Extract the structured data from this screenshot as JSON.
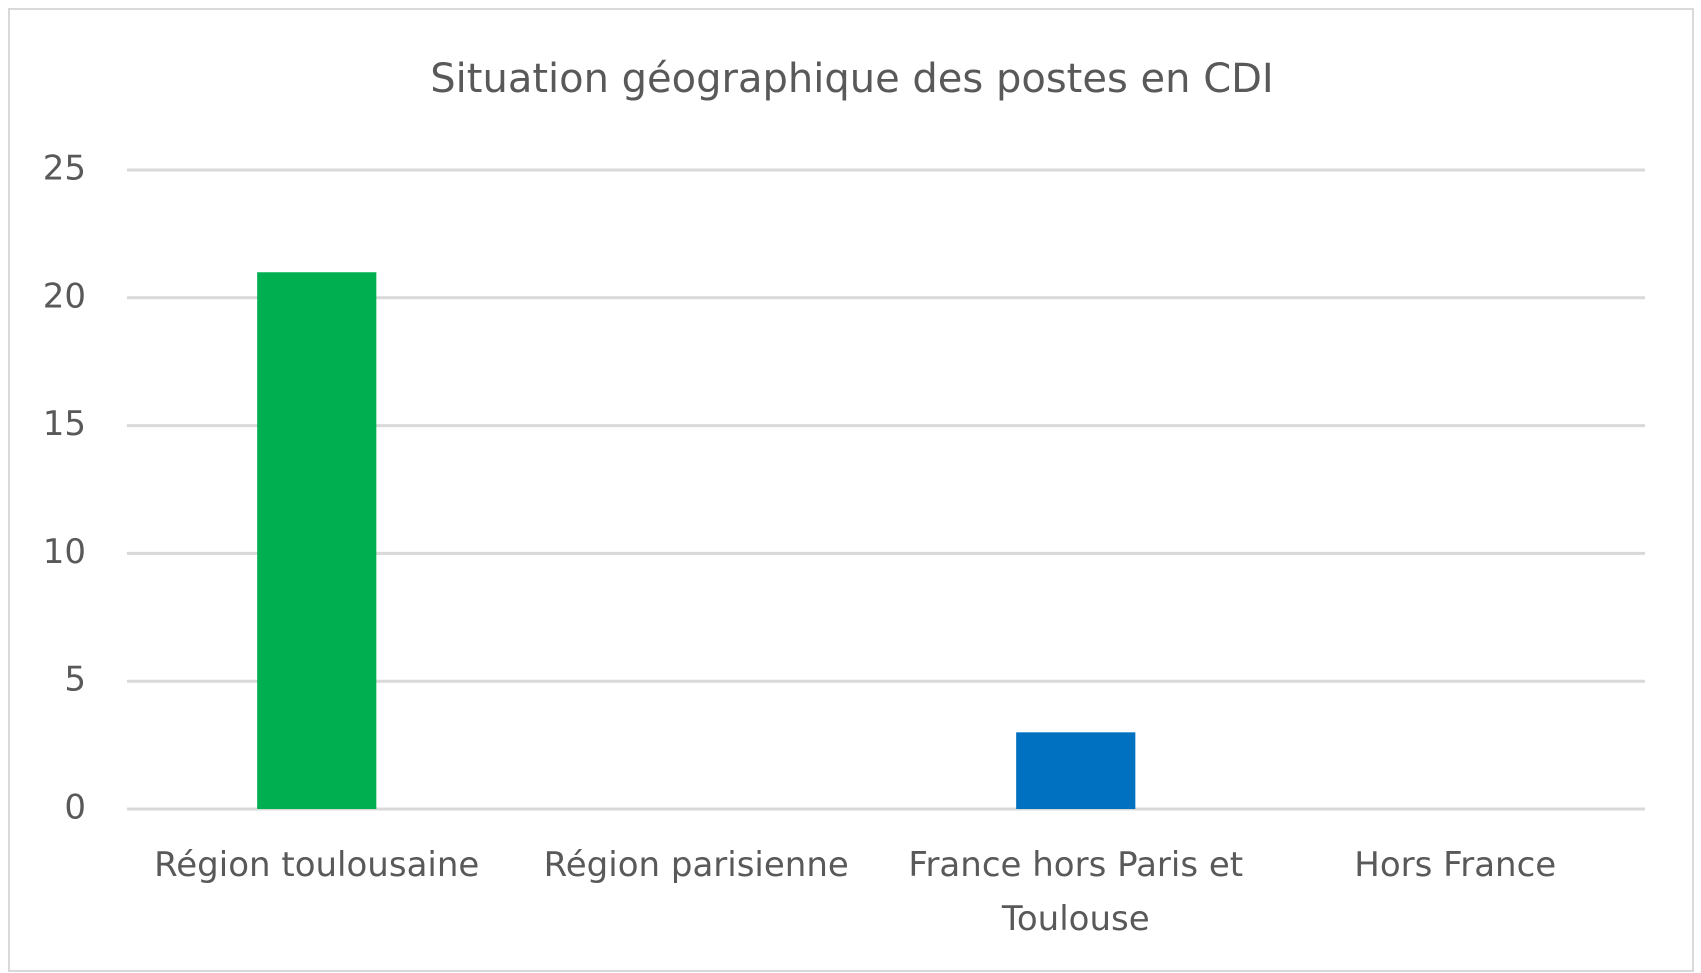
{
  "chart_data": {
    "type": "bar",
    "title": "Situation géographique des postes en CDI",
    "categories": [
      "Région toulousaine",
      "Région parisienne",
      "France hors Paris et Toulouse",
      "Hors France"
    ],
    "values": [
      21,
      0,
      3,
      0
    ],
    "colors": [
      "#00b050",
      "#00b050",
      "#0070c0",
      "#0070c0"
    ],
    "ylim": [
      0,
      25
    ],
    "yticks": [
      0,
      5,
      10,
      15,
      20,
      25
    ],
    "grid": true
  }
}
